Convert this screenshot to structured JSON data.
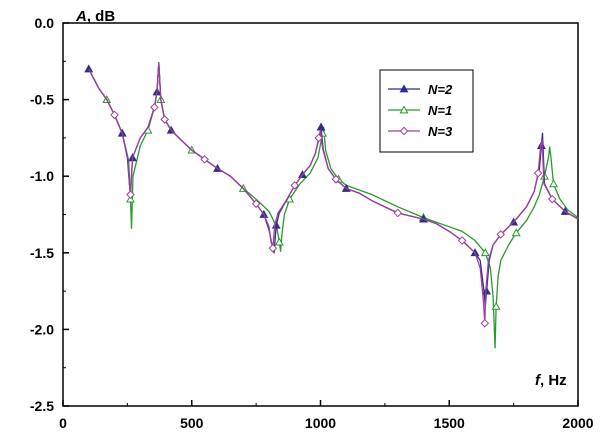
{
  "chart_data": {
    "type": "line",
    "xlabel": {
      "var": "f",
      "unit": ", Hz"
    },
    "ylabel": {
      "var": "A",
      "unit": ", dB"
    },
    "xlim": [
      0,
      2000
    ],
    "ylim": [
      -2.5,
      0.0
    ],
    "xticks": [
      "0",
      "500",
      "1000",
      "1500",
      "2000"
    ],
    "yticks": [
      "0.0",
      "-0.5",
      "-1.0",
      "-1.5",
      "-2.0",
      "-2.5"
    ],
    "grid": false,
    "legend_position": "top-right",
    "legend": [
      "N=2",
      "N=1",
      "N=3"
    ],
    "series": [
      {
        "name": "N=2",
        "color": "#2e2e86",
        "marker": "triangle-filled",
        "x": [
          100,
          140,
          170,
          200,
          230,
          250,
          258,
          262,
          270,
          300,
          330,
          355,
          365,
          372,
          380,
          395,
          420,
          450,
          500,
          550,
          600,
          650,
          700,
          750,
          780,
          800,
          812,
          820,
          828,
          840,
          870,
          900,
          930,
          960,
          980,
          995,
          1002,
          1010,
          1030,
          1060,
          1100,
          1150,
          1200,
          1300,
          1400,
          1450,
          1500,
          1550,
          1600,
          1620,
          1635,
          1640,
          1645,
          1655,
          1670,
          1700,
          1750,
          1800,
          1830,
          1850,
          1858,
          1862,
          1870,
          1900,
          1950,
          2000
        ],
        "y": [
          -0.3,
          -0.43,
          -0.5,
          -0.6,
          -0.72,
          -0.88,
          -1.05,
          -1.12,
          -0.88,
          -0.75,
          -0.68,
          -0.55,
          -0.45,
          -0.26,
          -0.5,
          -0.63,
          -0.7,
          -0.75,
          -0.83,
          -0.89,
          -0.95,
          -1.0,
          -1.08,
          -1.18,
          -1.25,
          -1.35,
          -1.45,
          -1.5,
          -1.32,
          -1.24,
          -1.15,
          -1.06,
          -0.99,
          -0.93,
          -0.85,
          -0.75,
          -0.68,
          -0.82,
          -0.95,
          -1.02,
          -1.08,
          -1.11,
          -1.16,
          -1.24,
          -1.28,
          -1.31,
          -1.36,
          -1.42,
          -1.5,
          -1.55,
          -1.75,
          -1.85,
          -1.75,
          -1.55,
          -1.45,
          -1.38,
          -1.3,
          -1.2,
          -1.1,
          -0.95,
          -0.8,
          -0.72,
          -1.05,
          -1.15,
          -1.23,
          -1.28
        ]
      },
      {
        "name": "N=1",
        "color": "#2a9a2a",
        "marker": "triangle-open",
        "x": [
          100,
          140,
          170,
          200,
          230,
          255,
          262,
          266,
          272,
          300,
          330,
          355,
          365,
          372,
          380,
          395,
          420,
          450,
          500,
          550,
          600,
          650,
          700,
          750,
          800,
          830,
          840,
          845,
          850,
          860,
          880,
          920,
          960,
          990,
          1008,
          1012,
          1020,
          1040,
          1070,
          1100,
          1200,
          1300,
          1400,
          1500,
          1550,
          1600,
          1640,
          1660,
          1670,
          1678,
          1682,
          1690,
          1700,
          1730,
          1760,
          1800,
          1830,
          1850,
          1870,
          1885,
          1890,
          1895,
          1905,
          1930,
          1960,
          2000
        ],
        "y": [
          -0.3,
          -0.43,
          -0.5,
          -0.6,
          -0.72,
          -0.9,
          -1.15,
          -1.34,
          -1.0,
          -0.8,
          -0.7,
          -0.55,
          -0.45,
          -0.26,
          -0.5,
          -0.63,
          -0.7,
          -0.75,
          -0.83,
          -0.89,
          -0.95,
          -1.0,
          -1.08,
          -1.15,
          -1.23,
          -1.33,
          -1.43,
          -1.49,
          -1.38,
          -1.25,
          -1.15,
          -1.05,
          -0.98,
          -0.88,
          -0.72,
          -0.68,
          -0.83,
          -0.95,
          -1.02,
          -1.06,
          -1.12,
          -1.2,
          -1.27,
          -1.33,
          -1.36,
          -1.42,
          -1.5,
          -1.6,
          -1.78,
          -2.12,
          -1.85,
          -1.65,
          -1.55,
          -1.45,
          -1.37,
          -1.29,
          -1.2,
          -1.12,
          -1.0,
          -0.88,
          -0.81,
          -0.88,
          -1.05,
          -1.15,
          -1.22,
          -1.27
        ]
      },
      {
        "name": "N=3",
        "color": "#a03fa0",
        "marker": "diamond-open",
        "x": [
          100,
          140,
          170,
          200,
          230,
          252,
          258,
          262,
          270,
          300,
          330,
          355,
          365,
          372,
          380,
          395,
          420,
          450,
          500,
          550,
          600,
          650,
          700,
          750,
          780,
          800,
          808,
          815,
          822,
          835,
          870,
          900,
          930,
          960,
          980,
          993,
          1000,
          1008,
          1030,
          1060,
          1100,
          1150,
          1200,
          1300,
          1400,
          1450,
          1500,
          1550,
          1600,
          1620,
          1632,
          1638,
          1642,
          1652,
          1670,
          1700,
          1750,
          1800,
          1830,
          1845,
          1855,
          1860,
          1868,
          1900,
          1950,
          2000
        ],
        "y": [
          -0.3,
          -0.43,
          -0.5,
          -0.6,
          -0.72,
          -0.88,
          -1.05,
          -1.12,
          -0.88,
          -0.75,
          -0.68,
          -0.55,
          -0.45,
          -0.26,
          -0.5,
          -0.63,
          -0.7,
          -0.75,
          -0.83,
          -0.89,
          -0.95,
          -1.0,
          -1.08,
          -1.18,
          -1.25,
          -1.33,
          -1.43,
          -1.47,
          -1.32,
          -1.24,
          -1.15,
          -1.06,
          -0.99,
          -0.93,
          -0.85,
          -0.75,
          -0.7,
          -0.82,
          -0.95,
          -1.02,
          -1.08,
          -1.11,
          -1.16,
          -1.24,
          -1.28,
          -1.31,
          -1.36,
          -1.42,
          -1.5,
          -1.6,
          -1.8,
          -1.96,
          -1.75,
          -1.55,
          -1.45,
          -1.38,
          -1.3,
          -1.2,
          -1.1,
          -0.98,
          -0.8,
          -0.76,
          -1.05,
          -1.15,
          -1.23,
          -1.28
        ]
      }
    ]
  }
}
